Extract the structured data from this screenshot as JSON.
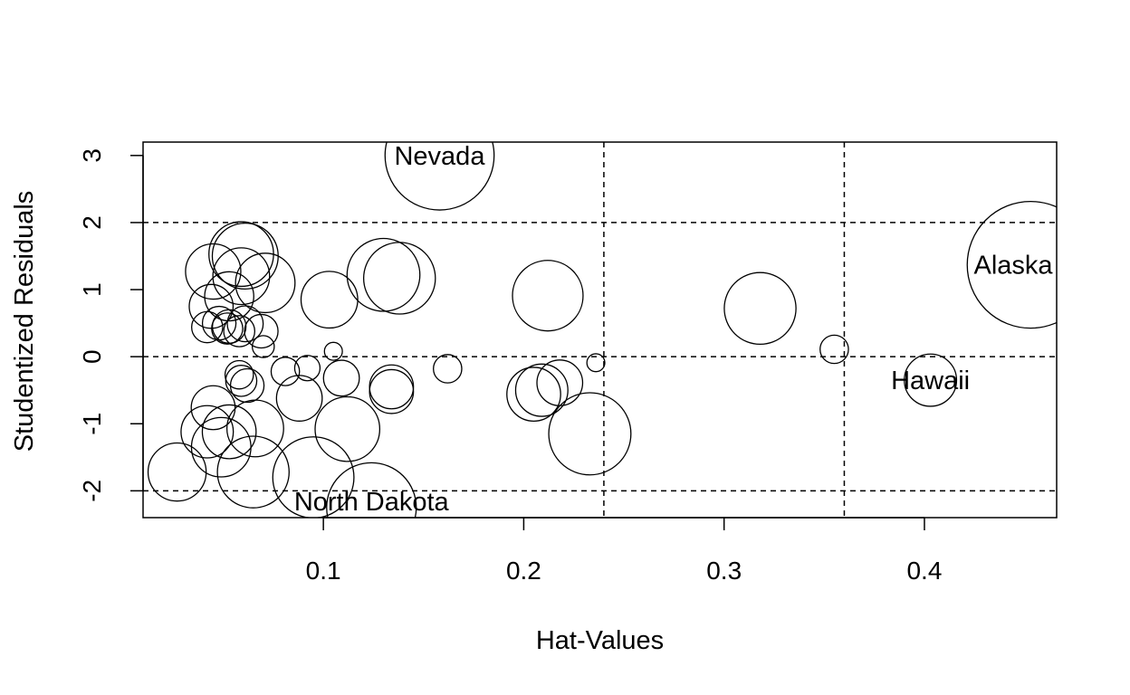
{
  "chart_data": {
    "type": "scatter",
    "title": "",
    "xlabel": "Hat-Values",
    "ylabel": "Studentized Residuals",
    "xlim": [
      0.01,
      0.466
    ],
    "ylim": [
      -2.4,
      3.2
    ],
    "xticks": [
      0.1,
      0.2,
      0.3,
      0.4
    ],
    "xtick_labels": [
      "0.1",
      "0.2",
      "0.3",
      "0.4"
    ],
    "yticks": [
      -2,
      -1,
      0,
      1,
      2,
      3
    ],
    "ytick_labels": [
      "-2",
      "-1",
      "0",
      "1",
      "2",
      "3"
    ],
    "reference_lines": {
      "horizontal": [
        -2,
        0,
        2
      ],
      "vertical": [
        0.24,
        0.36
      ],
      "style": "dashed"
    },
    "grid": false,
    "marker": "open circle, area proportional to Cook's distance",
    "points": [
      {
        "x": 0.158,
        "y": 3.0,
        "size": 0.74,
        "label": "Nevada"
      },
      {
        "x": 0.453,
        "y": 1.37,
        "size": 1.0,
        "label": "Alaska"
      },
      {
        "x": 0.403,
        "y": -0.35,
        "size": 0.17,
        "label": "Hawaii"
      },
      {
        "x": 0.124,
        "y": -2.25,
        "size": 0.5,
        "label": "North Dakota"
      },
      {
        "x": 0.355,
        "y": 0.11,
        "size": 0.05,
        "label": ""
      },
      {
        "x": 0.318,
        "y": 0.72,
        "size": 0.32,
        "label": ""
      },
      {
        "x": 0.233,
        "y": -1.15,
        "size": 0.42,
        "label": ""
      },
      {
        "x": 0.212,
        "y": 0.91,
        "size": 0.31,
        "label": ""
      },
      {
        "x": 0.236,
        "y": -0.09,
        "size": 0.02,
        "label": ""
      },
      {
        "x": 0.218,
        "y": -0.39,
        "size": 0.13,
        "label": ""
      },
      {
        "x": 0.209,
        "y": -0.5,
        "size": 0.17,
        "label": ""
      },
      {
        "x": 0.205,
        "y": -0.56,
        "size": 0.18,
        "label": ""
      },
      {
        "x": 0.162,
        "y": -0.18,
        "size": 0.05,
        "label": ""
      },
      {
        "x": 0.138,
        "y": 1.17,
        "size": 0.32,
        "label": ""
      },
      {
        "x": 0.13,
        "y": 1.22,
        "size": 0.33,
        "label": ""
      },
      {
        "x": 0.134,
        "y": -0.45,
        "size": 0.12,
        "label": ""
      },
      {
        "x": 0.134,
        "y": -0.52,
        "size": 0.12,
        "label": ""
      },
      {
        "x": 0.112,
        "y": -1.08,
        "size": 0.26,
        "label": ""
      },
      {
        "x": 0.109,
        "y": -0.32,
        "size": 0.08,
        "label": ""
      },
      {
        "x": 0.105,
        "y": 0.08,
        "size": 0.02,
        "label": ""
      },
      {
        "x": 0.103,
        "y": 0.85,
        "size": 0.2,
        "label": ""
      },
      {
        "x": 0.095,
        "y": -1.8,
        "size": 0.41,
        "label": ""
      },
      {
        "x": 0.092,
        "y": -0.17,
        "size": 0.04,
        "label": ""
      },
      {
        "x": 0.088,
        "y": -0.62,
        "size": 0.13,
        "label": ""
      },
      {
        "x": 0.081,
        "y": -0.22,
        "size": 0.05,
        "label": ""
      },
      {
        "x": 0.071,
        "y": 1.1,
        "size": 0.22,
        "label": ""
      },
      {
        "x": 0.069,
        "y": 0.38,
        "size": 0.07,
        "label": ""
      },
      {
        "x": 0.07,
        "y": 0.15,
        "size": 0.03,
        "label": ""
      },
      {
        "x": 0.066,
        "y": -1.07,
        "size": 0.2,
        "label": ""
      },
      {
        "x": 0.065,
        "y": -1.72,
        "size": 0.32,
        "label": ""
      },
      {
        "x": 0.061,
        "y": 1.5,
        "size": 0.27,
        "label": ""
      },
      {
        "x": 0.059,
        "y": 1.53,
        "size": 0.26,
        "label": ""
      },
      {
        "x": 0.059,
        "y": 1.2,
        "size": 0.2,
        "label": ""
      },
      {
        "x": 0.061,
        "y": 0.49,
        "size": 0.08,
        "label": ""
      },
      {
        "x": 0.058,
        "y": 0.38,
        "size": 0.06,
        "label": ""
      },
      {
        "x": 0.053,
        "y": 0.9,
        "size": 0.15,
        "label": ""
      },
      {
        "x": 0.053,
        "y": 0.45,
        "size": 0.07,
        "label": ""
      },
      {
        "x": 0.052,
        "y": 0.42,
        "size": 0.06,
        "label": ""
      },
      {
        "x": 0.048,
        "y": 0.5,
        "size": 0.07,
        "label": ""
      },
      {
        "x": 0.045,
        "y": 1.27,
        "size": 0.19,
        "label": ""
      },
      {
        "x": 0.044,
        "y": 0.75,
        "size": 0.12,
        "label": ""
      },
      {
        "x": 0.042,
        "y": 0.44,
        "size": 0.06,
        "label": ""
      },
      {
        "x": 0.058,
        "y": -0.27,
        "size": 0.05,
        "label": ""
      },
      {
        "x": 0.059,
        "y": -0.36,
        "size": 0.06,
        "label": ""
      },
      {
        "x": 0.062,
        "y": -0.43,
        "size": 0.07,
        "label": ""
      },
      {
        "x": 0.045,
        "y": -0.76,
        "size": 0.12,
        "label": ""
      },
      {
        "x": 0.053,
        "y": -1.12,
        "size": 0.18,
        "label": ""
      },
      {
        "x": 0.042,
        "y": -1.12,
        "size": 0.17,
        "label": ""
      },
      {
        "x": 0.049,
        "y": -1.35,
        "size": 0.22,
        "label": ""
      },
      {
        "x": 0.027,
        "y": -1.72,
        "size": 0.21,
        "label": ""
      }
    ]
  }
}
